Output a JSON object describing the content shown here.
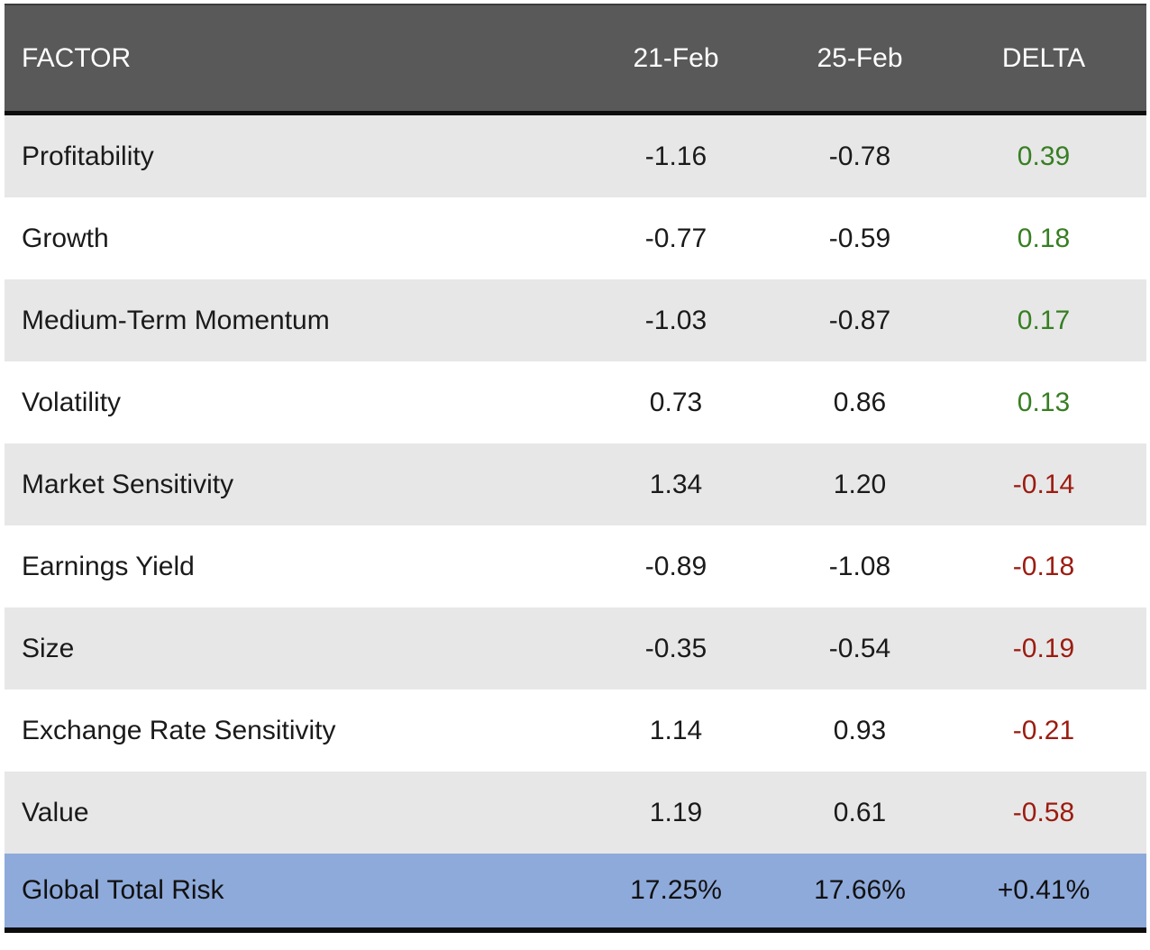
{
  "table": {
    "columns": {
      "factor": "FACTOR",
      "date1": "21-Feb",
      "date2": "25-Feb",
      "delta": "DELTA"
    },
    "rows": [
      {
        "factor": "Profitability",
        "date1": "-1.16",
        "date2": "-0.78",
        "delta": "0.39",
        "trend": "up"
      },
      {
        "factor": "Growth",
        "date1": "-0.77",
        "date2": "-0.59",
        "delta": "0.18",
        "trend": "up"
      },
      {
        "factor": "Medium-Term Momentum",
        "date1": "-1.03",
        "date2": "-0.87",
        "delta": "0.17",
        "trend": "up"
      },
      {
        "factor": "Volatility",
        "date1": "0.73",
        "date2": "0.86",
        "delta": "0.13",
        "trend": "up"
      },
      {
        "factor": "Market Sensitivity",
        "date1": "1.34",
        "date2": "1.20",
        "delta": "-0.14",
        "trend": "down"
      },
      {
        "factor": "Earnings Yield",
        "date1": "-0.89",
        "date2": "-1.08",
        "delta": "-0.18",
        "trend": "down"
      },
      {
        "factor": "Size",
        "date1": "-0.35",
        "date2": "-0.54",
        "delta": "-0.19",
        "trend": "down"
      },
      {
        "factor": "Exchange Rate Sensitivity",
        "date1": "1.14",
        "date2": "0.93",
        "delta": "-0.21",
        "trend": "down"
      },
      {
        "factor": "Value",
        "date1": "1.19",
        "date2": "0.61",
        "delta": "-0.58",
        "trend": "down"
      }
    ],
    "total_row": {
      "factor": "Global Total Risk",
      "date1": "17.25%",
      "date2": "17.66%",
      "delta": "+0.41%"
    }
  },
  "colors": {
    "header_bg": "#595959",
    "stripe_bg": "#e7e7e7",
    "total_bg": "#8eaadb",
    "delta_up": "#377e22",
    "delta_down": "#9c1b10"
  }
}
